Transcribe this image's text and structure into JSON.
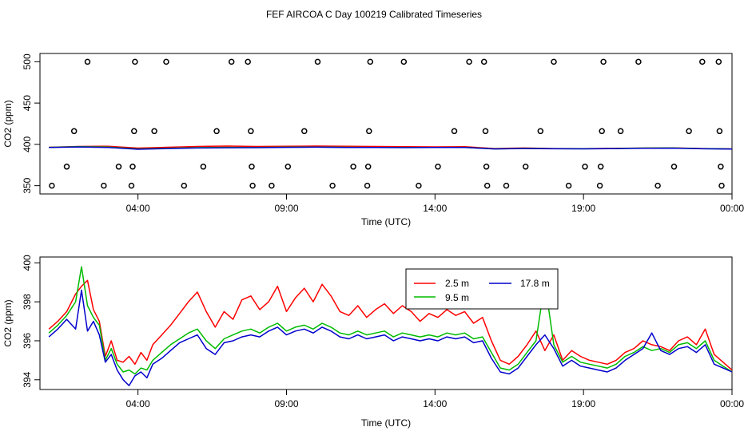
{
  "page_title": "FEF AIRCOA C  Day 100219  Calibrated Timeseries",
  "colors": {
    "level_2_5": "#ff0000",
    "level_9_5": "#00bb00",
    "level_17_8": "#0000cc",
    "markers": "#000000"
  },
  "chart_data": [
    {
      "type": "line",
      "name": "top-panel",
      "xlabel": "Time (UTC)",
      "ylabel": "CO2 (ppm)",
      "xlim": [
        0.7,
        24.0
      ],
      "ylim": [
        340,
        510
      ],
      "xticks": [
        4,
        9,
        14,
        19,
        24
      ],
      "xtick_labels": [
        "04:00",
        "09:00",
        "14:00",
        "19:00",
        "00:00"
      ],
      "yticks": [
        350,
        400,
        450,
        500
      ],
      "ytick_labels": [
        "350",
        "400",
        "450",
        "500"
      ],
      "series": [
        {
          "name": "2.5 m",
          "color": "#ff0000",
          "x": [
            1.0,
            2.0,
            3.0,
            4.0,
            5.0,
            6.0,
            7.0,
            8.0,
            9.0,
            10.0,
            11.0,
            12.0,
            13.0,
            14.0,
            15.0,
            16.0,
            17.0,
            18.0,
            19.0,
            20.0,
            21.0,
            22.0,
            23.0,
            24.0
          ],
          "values": [
            396.5,
            397.5,
            397.8,
            395.5,
            396.5,
            397.5,
            398.0,
            397.5,
            397.8,
            398.0,
            397.8,
            397.5,
            397.3,
            397.0,
            397.2,
            395.0,
            395.6,
            395.0,
            394.9,
            395.2,
            395.5,
            395.7,
            395.0,
            394.6
          ]
        },
        {
          "name": "9.5 m",
          "color": "#00bb00",
          "x": [
            1.0,
            2.0,
            3.0,
            4.0,
            5.0,
            6.0,
            7.0,
            8.0,
            9.0,
            10.0,
            11.0,
            12.0,
            13.0,
            14.0,
            15.0,
            16.0,
            17.0,
            18.0,
            19.0,
            20.0,
            21.0,
            22.0,
            23.0,
            24.0
          ],
          "values": [
            396.4,
            397.3,
            396.8,
            394.5,
            395.3,
            396.0,
            396.4,
            396.2,
            396.6,
            396.8,
            396.5,
            396.3,
            396.2,
            396.3,
            396.4,
            394.6,
            395.2,
            394.8,
            394.7,
            395.0,
            395.5,
            395.6,
            394.9,
            394.5
          ]
        },
        {
          "name": "17.8 m",
          "color": "#0000cc",
          "x": [
            1.0,
            2.0,
            3.0,
            4.0,
            5.0,
            6.0,
            7.0,
            8.0,
            9.0,
            10.0,
            11.0,
            12.0,
            13.0,
            14.0,
            15.0,
            16.0,
            17.0,
            18.0,
            19.0,
            20.0,
            21.0,
            22.0,
            23.0,
            24.0
          ],
          "values": [
            396.2,
            396.9,
            396.2,
            394.1,
            395.0,
            395.6,
            395.9,
            396.0,
            396.4,
            396.6,
            396.3,
            396.2,
            396.0,
            396.2,
            396.2,
            394.5,
            395.0,
            394.7,
            394.6,
            394.9,
            395.3,
            395.4,
            394.7,
            394.4
          ]
        }
      ],
      "calibration_markers": [
        {
          "x": 1.1,
          "y": 350
        },
        {
          "x": 1.6,
          "y": 373
        },
        {
          "x": 1.85,
          "y": 416
        },
        {
          "x": 2.3,
          "y": 500
        },
        {
          "x": 2.85,
          "y": 350
        },
        {
          "x": 3.35,
          "y": 373
        },
        {
          "x": 3.78,
          "y": 350
        },
        {
          "x": 3.82,
          "y": 373
        },
        {
          "x": 3.87,
          "y": 416
        },
        {
          "x": 3.9,
          "y": 500
        },
        {
          "x": 4.55,
          "y": 416
        },
        {
          "x": 4.95,
          "y": 500
        },
        {
          "x": 5.55,
          "y": 350
        },
        {
          "x": 6.2,
          "y": 373
        },
        {
          "x": 6.65,
          "y": 416
        },
        {
          "x": 7.15,
          "y": 500
        },
        {
          "x": 7.7,
          "y": 500
        },
        {
          "x": 7.8,
          "y": 416
        },
        {
          "x": 7.83,
          "y": 373
        },
        {
          "x": 7.86,
          "y": 350
        },
        {
          "x": 8.5,
          "y": 350
        },
        {
          "x": 9.05,
          "y": 373
        },
        {
          "x": 9.6,
          "y": 416
        },
        {
          "x": 10.05,
          "y": 500
        },
        {
          "x": 10.55,
          "y": 350
        },
        {
          "x": 11.25,
          "y": 373
        },
        {
          "x": 11.72,
          "y": 350
        },
        {
          "x": 11.75,
          "y": 373
        },
        {
          "x": 11.78,
          "y": 416
        },
        {
          "x": 11.82,
          "y": 500
        },
        {
          "x": 12.95,
          "y": 500
        },
        {
          "x": 13.45,
          "y": 350
        },
        {
          "x": 14.1,
          "y": 373
        },
        {
          "x": 14.65,
          "y": 416
        },
        {
          "x": 15.15,
          "y": 500
        },
        {
          "x": 15.65,
          "y": 500
        },
        {
          "x": 15.7,
          "y": 416
        },
        {
          "x": 15.73,
          "y": 373
        },
        {
          "x": 15.76,
          "y": 350
        },
        {
          "x": 16.4,
          "y": 350
        },
        {
          "x": 17.05,
          "y": 373
        },
        {
          "x": 17.55,
          "y": 416
        },
        {
          "x": 18.0,
          "y": 500
        },
        {
          "x": 18.5,
          "y": 350
        },
        {
          "x": 19.05,
          "y": 373
        },
        {
          "x": 19.55,
          "y": 350
        },
        {
          "x": 19.58,
          "y": 373
        },
        {
          "x": 19.62,
          "y": 416
        },
        {
          "x": 19.67,
          "y": 500
        },
        {
          "x": 20.25,
          "y": 416
        },
        {
          "x": 20.85,
          "y": 500
        },
        {
          "x": 21.5,
          "y": 350
        },
        {
          "x": 22.05,
          "y": 373
        },
        {
          "x": 22.55,
          "y": 416
        },
        {
          "x": 23.0,
          "y": 500
        },
        {
          "x": 23.55,
          "y": 500
        },
        {
          "x": 23.58,
          "y": 416
        },
        {
          "x": 23.62,
          "y": 373
        },
        {
          "x": 23.65,
          "y": 350
        }
      ]
    },
    {
      "type": "line",
      "name": "bottom-panel",
      "xlabel": "Time (UTC)",
      "ylabel": "CO2 (ppm)",
      "xlim": [
        0.7,
        24.0
      ],
      "ylim": [
        393.5,
        400.3
      ],
      "xticks": [
        4,
        9,
        14,
        19,
        24
      ],
      "xtick_labels": [
        "04:00",
        "09:00",
        "14:00",
        "19:00",
        "00:00"
      ],
      "yticks": [
        394,
        396,
        398,
        400
      ],
      "ytick_labels": [
        "394",
        "396",
        "398",
        "400"
      ],
      "legend": {
        "position": "top-right",
        "entries": [
          "2.5 m",
          "9.5 m",
          "17.8 m"
        ]
      },
      "series": [
        {
          "name": "2.5 m",
          "color": "#ff0000",
          "x": [
            1.0,
            1.3,
            1.6,
            1.9,
            2.1,
            2.3,
            2.5,
            2.7,
            2.9,
            3.1,
            3.3,
            3.5,
            3.7,
            3.9,
            4.1,
            4.3,
            4.5,
            4.8,
            5.1,
            5.4,
            5.7,
            6.0,
            6.3,
            6.6,
            6.9,
            7.2,
            7.5,
            7.8,
            8.1,
            8.4,
            8.7,
            9.0,
            9.3,
            9.6,
            9.9,
            10.2,
            10.5,
            10.8,
            11.1,
            11.4,
            11.7,
            12.0,
            12.3,
            12.6,
            12.9,
            13.2,
            13.5,
            13.8,
            14.1,
            14.4,
            14.7,
            15.0,
            15.3,
            15.6,
            15.9,
            16.2,
            16.5,
            16.8,
            17.1,
            17.4,
            17.7,
            18.0,
            18.3,
            18.6,
            18.9,
            19.2,
            19.5,
            19.8,
            20.1,
            20.4,
            20.7,
            21.0,
            21.3,
            21.6,
            21.9,
            22.2,
            22.5,
            22.8,
            23.1,
            23.4,
            23.7,
            24.0
          ],
          "values": [
            396.6,
            397.0,
            397.5,
            398.4,
            398.8,
            399.1,
            397.6,
            397.0,
            395.2,
            396.0,
            395.0,
            394.9,
            395.2,
            394.8,
            395.4,
            395.0,
            395.8,
            396.3,
            396.8,
            397.4,
            398.0,
            398.5,
            397.5,
            396.7,
            397.5,
            397.1,
            398.1,
            398.3,
            397.6,
            398.0,
            398.8,
            397.5,
            398.2,
            398.7,
            398.0,
            398.9,
            398.3,
            397.5,
            397.3,
            397.8,
            397.2,
            397.6,
            397.9,
            397.4,
            397.8,
            397.5,
            397.0,
            397.4,
            397.2,
            397.6,
            397.3,
            397.5,
            396.9,
            397.2,
            396.0,
            395.0,
            394.8,
            395.2,
            395.8,
            396.5,
            395.5,
            396.3,
            395.0,
            395.5,
            395.2,
            395.0,
            394.9,
            394.8,
            395.0,
            395.4,
            395.6,
            396.0,
            395.8,
            395.7,
            395.5,
            396.0,
            396.2,
            395.8,
            396.6,
            395.3,
            394.9,
            394.5
          ]
        },
        {
          "name": "9.5 m",
          "color": "#00bb00",
          "x": [
            1.0,
            1.3,
            1.6,
            1.9,
            2.1,
            2.3,
            2.5,
            2.7,
            2.9,
            3.1,
            3.3,
            3.5,
            3.7,
            3.9,
            4.1,
            4.3,
            4.5,
            4.8,
            5.1,
            5.4,
            5.7,
            6.0,
            6.3,
            6.6,
            6.9,
            7.2,
            7.5,
            7.8,
            8.1,
            8.4,
            8.7,
            9.0,
            9.3,
            9.6,
            9.9,
            10.2,
            10.5,
            10.8,
            11.1,
            11.4,
            11.7,
            12.0,
            12.3,
            12.6,
            12.9,
            13.2,
            13.5,
            13.8,
            14.1,
            14.4,
            14.7,
            15.0,
            15.3,
            15.6,
            15.9,
            16.2,
            16.5,
            16.8,
            17.1,
            17.4,
            17.7,
            18.0,
            18.3,
            18.6,
            18.9,
            19.2,
            19.5,
            19.8,
            20.1,
            20.4,
            20.7,
            21.0,
            21.3,
            21.6,
            21.9,
            22.2,
            22.5,
            22.8,
            23.1,
            23.4,
            23.7,
            24.0
          ],
          "values": [
            396.4,
            396.8,
            397.3,
            398.0,
            399.8,
            397.8,
            397.2,
            396.8,
            395.0,
            395.6,
            394.8,
            394.4,
            394.5,
            394.3,
            394.6,
            394.5,
            395.0,
            395.4,
            395.8,
            396.1,
            396.4,
            396.6,
            396.0,
            395.6,
            396.1,
            396.3,
            396.5,
            396.6,
            396.4,
            396.7,
            396.9,
            396.5,
            396.7,
            396.8,
            396.6,
            396.9,
            396.7,
            396.4,
            396.3,
            396.5,
            396.3,
            396.4,
            396.5,
            396.2,
            396.4,
            396.3,
            396.2,
            396.3,
            396.2,
            396.4,
            396.3,
            396.4,
            396.1,
            396.2,
            395.4,
            394.6,
            394.5,
            394.8,
            395.4,
            396.0,
            399.0,
            395.8,
            394.9,
            395.2,
            394.9,
            394.8,
            394.7,
            394.6,
            394.8,
            395.2,
            395.4,
            395.7,
            395.5,
            395.6,
            395.4,
            395.8,
            395.9,
            395.6,
            396.0,
            395.0,
            394.7,
            394.4
          ]
        },
        {
          "name": "17.8 m",
          "color": "#0000cc",
          "x": [
            1.0,
            1.3,
            1.6,
            1.9,
            2.1,
            2.3,
            2.5,
            2.7,
            2.9,
            3.1,
            3.3,
            3.5,
            3.7,
            3.9,
            4.1,
            4.3,
            4.5,
            4.8,
            5.1,
            5.4,
            5.7,
            6.0,
            6.3,
            6.6,
            6.9,
            7.2,
            7.5,
            7.8,
            8.1,
            8.4,
            8.7,
            9.0,
            9.3,
            9.6,
            9.9,
            10.2,
            10.5,
            10.8,
            11.1,
            11.4,
            11.7,
            12.0,
            12.3,
            12.6,
            12.9,
            13.2,
            13.5,
            13.8,
            14.1,
            14.4,
            14.7,
            15.0,
            15.3,
            15.6,
            15.9,
            16.2,
            16.5,
            16.8,
            17.1,
            17.4,
            17.7,
            18.0,
            18.3,
            18.6,
            18.9,
            19.2,
            19.5,
            19.8,
            20.1,
            20.4,
            20.7,
            21.0,
            21.3,
            21.6,
            21.9,
            22.2,
            22.5,
            22.8,
            23.1,
            23.4,
            23.7,
            24.0
          ],
          "values": [
            396.2,
            396.6,
            397.1,
            396.6,
            398.6,
            396.5,
            397.0,
            396.3,
            394.9,
            395.3,
            394.5,
            394.0,
            393.7,
            394.2,
            394.4,
            394.1,
            394.8,
            395.1,
            395.5,
            395.9,
            396.1,
            396.3,
            395.6,
            395.3,
            395.9,
            396.0,
            396.2,
            396.3,
            396.2,
            396.5,
            396.7,
            396.3,
            396.5,
            396.6,
            396.4,
            396.7,
            396.5,
            396.2,
            396.1,
            396.3,
            396.1,
            396.2,
            396.3,
            396.0,
            396.2,
            396.1,
            396.0,
            396.1,
            396.0,
            396.2,
            396.1,
            396.2,
            395.9,
            396.0,
            395.1,
            394.4,
            394.3,
            394.6,
            395.2,
            395.8,
            396.3,
            395.6,
            394.7,
            395.0,
            394.7,
            394.6,
            394.5,
            394.4,
            394.6,
            395.0,
            395.3,
            395.6,
            396.4,
            395.5,
            395.3,
            395.6,
            395.7,
            395.4,
            395.8,
            394.8,
            394.6,
            394.4
          ]
        }
      ]
    }
  ]
}
